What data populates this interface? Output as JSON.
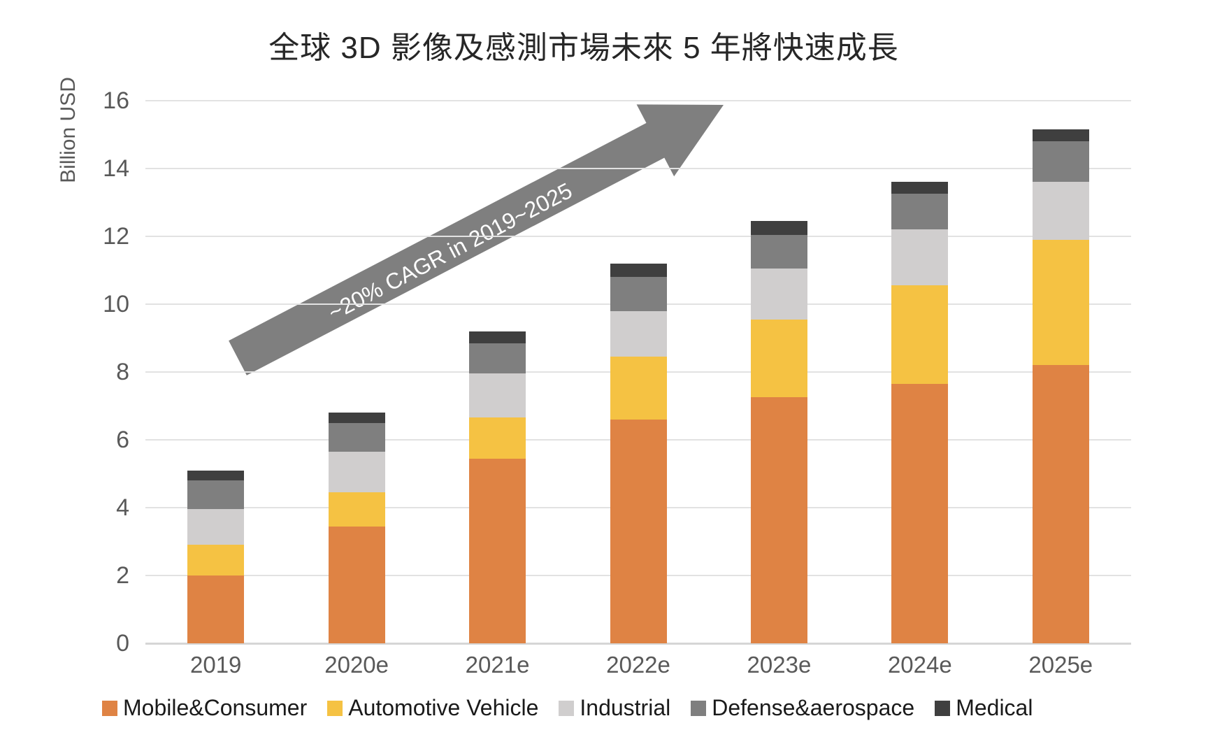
{
  "title": "全球 3D  影像及感測市場未來 5 年將快速成長",
  "chart_data": {
    "type": "bar",
    "stacked": true,
    "title": "全球 3D  影像及感測市場未來 5 年將快速成長",
    "xlabel": "",
    "ylabel": "Billion USD",
    "ylim": [
      0,
      16
    ],
    "ytick_step": 2,
    "grid": true,
    "legend_position": "bottom",
    "categories": [
      "2019",
      "2020e",
      "2021e",
      "2022e",
      "2023e",
      "2024e",
      "2025e"
    ],
    "series": [
      {
        "name": "Mobile&Consumer",
        "color": "#DF8344",
        "values": [
          2.0,
          3.45,
          5.45,
          6.6,
          7.25,
          7.65,
          8.2
        ]
      },
      {
        "name": "Automotive Vehicle",
        "color": "#F5C243",
        "values": [
          0.9,
          1.0,
          1.2,
          1.85,
          2.3,
          2.9,
          3.7
        ]
      },
      {
        "name": "Industrial",
        "color": "#D0CECE",
        "values": [
          1.05,
          1.2,
          1.3,
          1.35,
          1.5,
          1.65,
          1.7
        ]
      },
      {
        "name": "Defense&aerospace",
        "color": "#7F7F7F",
        "values": [
          0.85,
          0.85,
          0.9,
          1.0,
          1.0,
          1.05,
          1.2
        ]
      },
      {
        "name": "Medical",
        "color": "#3F3F3F",
        "values": [
          0.3,
          0.3,
          0.35,
          0.4,
          0.4,
          0.35,
          0.35
        ]
      }
    ],
    "totals": [
      5.1,
      6.8,
      9.2,
      11.2,
      12.45,
      13.6,
      15.15
    ],
    "annotation": {
      "text": "~20% CAGR in 2019~2025",
      "arrow_color": "#7F7F7F",
      "text_color": "#FFFFFF",
      "from_year": "2019",
      "to_year": "2025"
    },
    "axis_color": "#595959",
    "gridline_color": "#E2E2E2"
  }
}
